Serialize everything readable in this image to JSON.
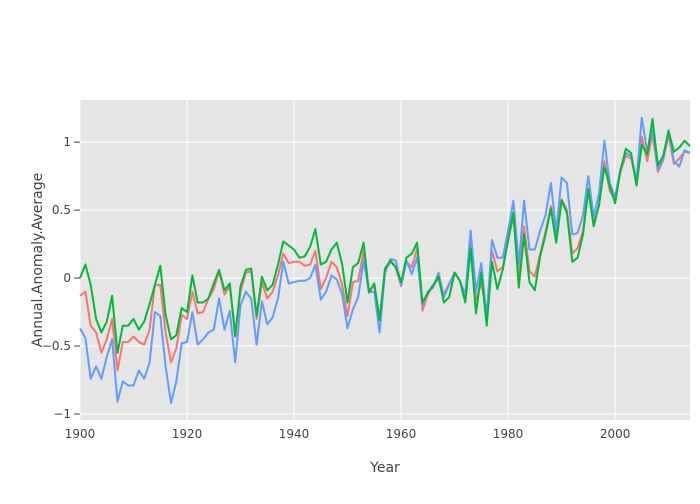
{
  "chart_data": {
    "type": "line",
    "title": "",
    "xlabel": "Year",
    "ylabel": "Annual.Anomaly.Average",
    "xlim": [
      1900,
      2014
    ],
    "ylim": [
      -1.044,
      1.31
    ],
    "grid": true,
    "legend": "none",
    "x_ticks": [
      1900,
      1920,
      1940,
      1960,
      1980,
      2000
    ],
    "x_tick_labels": [
      "1900",
      "1920",
      "1940",
      "1960",
      "1980",
      "2000"
    ],
    "y_ticks": [
      -1,
      -0.5,
      0,
      0.5,
      1
    ],
    "y_tick_labels": [
      "−1",
      "−0.5",
      "0",
      "0.5",
      "1"
    ],
    "x_start": 1900,
    "series": [
      {
        "color": "#f8766d",
        "values": [
          -0.13,
          -0.1,
          -0.35,
          -0.4,
          -0.55,
          -0.45,
          -0.3,
          -0.68,
          -0.47,
          -0.47,
          -0.43,
          -0.47,
          -0.49,
          -0.38,
          -0.05,
          -0.05,
          -0.4,
          -0.62,
          -0.52,
          -0.27,
          -0.3,
          -0.1,
          -0.26,
          -0.25,
          -0.15,
          -0.08,
          0.05,
          -0.12,
          -0.06,
          -0.4,
          -0.1,
          0.04,
          0.05,
          -0.3,
          -0.03,
          -0.15,
          -0.1,
          0.02,
          0.18,
          0.11,
          0.12,
          0.12,
          0.09,
          0.1,
          0.2,
          -0.08,
          0.0,
          0.12,
          0.08,
          -0.05,
          -0.28,
          -0.03,
          -0.02,
          0.2,
          -0.11,
          -0.05,
          -0.3,
          0.05,
          0.12,
          0.08,
          -0.06,
          0.12,
          0.08,
          0.22,
          -0.24,
          -0.12,
          -0.06,
          0.0,
          -0.12,
          -0.04,
          0.04,
          -0.02,
          -0.14,
          0.26,
          -0.16,
          -0.04,
          -0.25,
          0.2,
          0.05,
          0.08,
          0.28,
          0.45,
          0.0,
          0.38,
          0.05,
          0.01,
          0.18,
          0.34,
          0.53,
          0.3,
          0.58,
          0.5,
          0.18,
          0.22,
          0.35,
          0.66,
          0.4,
          0.53,
          0.86,
          0.64,
          0.58,
          0.78,
          0.9,
          0.88,
          0.7,
          1.04,
          0.86,
          1.06,
          0.78,
          0.87,
          1.05,
          0.84,
          0.88,
          0.93,
          0.92
        ]
      },
      {
        "color": "#619cff",
        "values": [
          -0.37,
          -0.44,
          -0.74,
          -0.65,
          -0.74,
          -0.58,
          -0.45,
          -0.91,
          -0.76,
          -0.79,
          -0.79,
          -0.68,
          -0.74,
          -0.62,
          -0.25,
          -0.28,
          -0.65,
          -0.92,
          -0.76,
          -0.48,
          -0.47,
          -0.25,
          -0.49,
          -0.45,
          -0.4,
          -0.38,
          -0.15,
          -0.38,
          -0.24,
          -0.62,
          -0.2,
          -0.1,
          -0.15,
          -0.49,
          -0.17,
          -0.34,
          -0.29,
          -0.15,
          0.12,
          -0.04,
          -0.03,
          -0.02,
          -0.02,
          0.0,
          0.1,
          -0.16,
          -0.1,
          0.02,
          -0.01,
          -0.12,
          -0.37,
          -0.23,
          -0.14,
          0.13,
          -0.1,
          -0.1,
          -0.4,
          0.04,
          0.14,
          0.13,
          -0.05,
          0.13,
          0.03,
          0.15,
          -0.2,
          -0.1,
          -0.07,
          0.04,
          -0.14,
          -0.05,
          0.04,
          -0.02,
          -0.12,
          0.35,
          -0.1,
          0.11,
          -0.3,
          0.28,
          0.15,
          0.15,
          0.35,
          0.57,
          0.1,
          0.57,
          0.21,
          0.21,
          0.35,
          0.46,
          0.7,
          0.34,
          0.74,
          0.7,
          0.32,
          0.33,
          0.46,
          0.75,
          0.45,
          0.62,
          1.01,
          0.7,
          0.6,
          0.8,
          0.92,
          0.9,
          0.72,
          1.18,
          0.93,
          1.09,
          0.8,
          0.88,
          1.09,
          0.86,
          0.82,
          0.94,
          0.92
        ]
      },
      {
        "color": "#00ba38",
        "values": [
          0.0,
          0.1,
          -0.05,
          -0.3,
          -0.4,
          -0.32,
          -0.13,
          -0.55,
          -0.35,
          -0.35,
          -0.3,
          -0.38,
          -0.32,
          -0.19,
          -0.05,
          0.09,
          -0.27,
          -0.45,
          -0.42,
          -0.22,
          -0.25,
          0.02,
          -0.18,
          -0.18,
          -0.15,
          -0.04,
          0.06,
          -0.09,
          -0.04,
          -0.43,
          -0.06,
          0.06,
          0.07,
          -0.28,
          0.01,
          -0.09,
          -0.05,
          0.1,
          0.27,
          0.24,
          0.21,
          0.15,
          0.16,
          0.23,
          0.36,
          0.1,
          0.12,
          0.21,
          0.26,
          0.1,
          -0.18,
          0.08,
          0.11,
          0.26,
          -0.1,
          -0.04,
          -0.31,
          0.07,
          0.13,
          0.08,
          -0.03,
          0.15,
          0.18,
          0.26,
          -0.18,
          -0.11,
          -0.05,
          0.01,
          -0.18,
          -0.14,
          0.04,
          -0.02,
          -0.18,
          0.22,
          -0.26,
          0.04,
          -0.35,
          0.12,
          -0.08,
          0.06,
          0.28,
          0.48,
          -0.07,
          0.32,
          -0.03,
          -0.09,
          0.16,
          0.32,
          0.51,
          0.26,
          0.57,
          0.48,
          0.12,
          0.15,
          0.32,
          0.65,
          0.38,
          0.54,
          0.82,
          0.68,
          0.55,
          0.79,
          0.95,
          0.92,
          0.68,
          0.98,
          0.91,
          1.17,
          0.83,
          0.9,
          1.08,
          0.93,
          0.96,
          1.01,
          0.97
        ]
      }
    ]
  }
}
